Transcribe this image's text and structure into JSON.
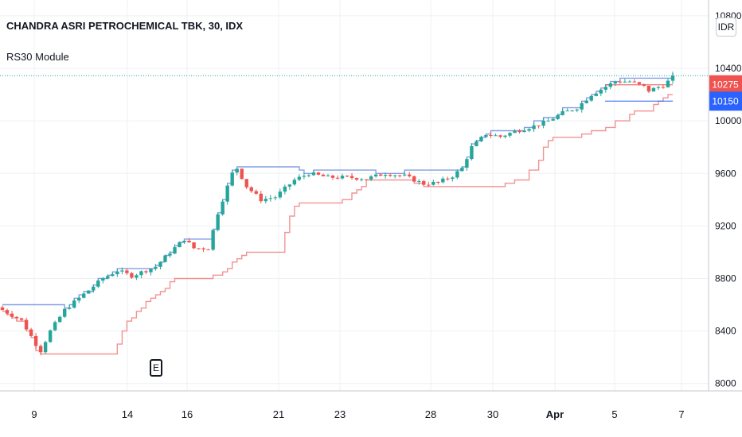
{
  "header": {
    "symbol_title": "CHANDRA ASRI PETROCHEMICAL TBK, 30, IDX",
    "indicator_name": "RS30 Module"
  },
  "currency_label": "IDR",
  "event_marker": "E",
  "chart_data": {
    "type": "candlestick",
    "title": "CHANDRA ASRI PETROCHEMICAL TBK, 30, IDX",
    "legend": [
      "RS30 Module"
    ],
    "y_ticks": [
      "10800",
      "10400",
      "10000",
      "9600",
      "9200",
      "8800",
      "8400",
      "8000"
    ],
    "y_tick_values": [
      10800,
      10400,
      10000,
      9600,
      9200,
      8800,
      8400,
      8000
    ],
    "ylim": [
      7980,
      10860
    ],
    "x_ticks": [
      {
        "label": "9",
        "bold": false
      },
      {
        "label": "14",
        "bold": false
      },
      {
        "label": "16",
        "bold": false
      },
      {
        "label": "21",
        "bold": false
      },
      {
        "label": "23",
        "bold": false
      },
      {
        "label": "28",
        "bold": false
      },
      {
        "label": "30",
        "bold": false
      },
      {
        "label": "Apr",
        "bold": true
      },
      {
        "label": "5",
        "bold": false
      },
      {
        "label": "7",
        "bold": false
      }
    ],
    "price_badges": [
      {
        "label": "10275",
        "value": 10275,
        "color": "#ef5350"
      },
      {
        "label": "10150",
        "value": 10150,
        "color": "#2962ff"
      }
    ],
    "colors": {
      "up": "#26a69a",
      "down": "#ef5350",
      "upper_line": "#5b7fe0",
      "lower_line": "#f08080"
    },
    "anchors": [
      [
        0,
        8560
      ],
      [
        4,
        8480
      ],
      [
        7,
        8300
      ],
      [
        8,
        8250
      ],
      [
        10,
        8400
      ],
      [
        13,
        8560
      ],
      [
        17,
        8680
      ],
      [
        21,
        8800
      ],
      [
        24,
        8860
      ],
      [
        27,
        8820
      ],
      [
        32,
        8890
      ],
      [
        35,
        9000
      ],
      [
        38,
        9100
      ],
      [
        40,
        9030
      ],
      [
        43,
        9030
      ],
      [
        45,
        9300
      ],
      [
        48,
        9600
      ],
      [
        49,
        9640
      ],
      [
        51,
        9500
      ],
      [
        54,
        9400
      ],
      [
        57,
        9420
      ],
      [
        61,
        9550
      ],
      [
        64,
        9600
      ],
      [
        68,
        9570
      ],
      [
        72,
        9570
      ],
      [
        76,
        9560
      ],
      [
        80,
        9600
      ],
      [
        84,
        9580
      ],
      [
        88,
        9520
      ],
      [
        91,
        9530
      ],
      [
        94,
        9580
      ],
      [
        96,
        9640
      ],
      [
        98,
        9800
      ],
      [
        101,
        9900
      ],
      [
        104,
        9880
      ],
      [
        107,
        9920
      ],
      [
        111,
        9960
      ],
      [
        114,
        10000
      ],
      [
        117,
        10060
      ],
      [
        120,
        10100
      ],
      [
        123,
        10200
      ],
      [
        126,
        10260
      ],
      [
        128,
        10300
      ],
      [
        131,
        10300
      ],
      [
        134,
        10260
      ],
      [
        135,
        10230
      ],
      [
        138,
        10270
      ],
      [
        140,
        10330
      ]
    ]
  }
}
